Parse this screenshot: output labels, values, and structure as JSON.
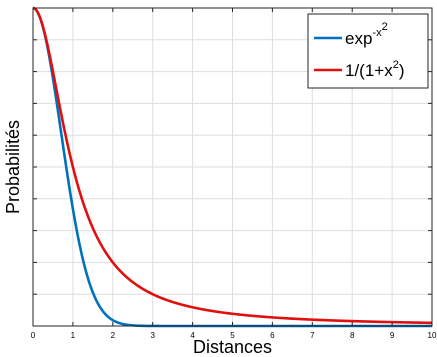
{
  "chart_data": {
    "type": "line",
    "xlabel": "Distances",
    "ylabel": "Probabilités",
    "xlim": [
      0,
      10
    ],
    "ylim": [
      0,
      1
    ],
    "x_ticks": [
      0,
      1,
      2,
      3,
      4,
      5,
      6,
      7,
      8,
      9,
      10
    ],
    "x_tick_labels": [
      "0",
      "1",
      "2",
      "3",
      "4",
      "5",
      "6",
      "7",
      "8",
      "9",
      "10"
    ],
    "y_tick_labels": [],
    "grid": true,
    "legend_position": "top-right",
    "series": [
      {
        "name": "exp-x2",
        "legend": {
          "base": "exp",
          "exp_prefix": "-x",
          "exp_sup": "2",
          "suffix": ""
        },
        "formula": "exp(-x^2)",
        "color": "#0072BD",
        "x": [
          0,
          0.25,
          0.5,
          0.75,
          1,
          1.25,
          1.5,
          1.75,
          2,
          2.5,
          3,
          3.5,
          4,
          5,
          6,
          7,
          8,
          9,
          10
        ],
        "y": [
          1,
          0.939,
          0.779,
          0.57,
          0.368,
          0.21,
          0.105,
          0.047,
          0.018,
          0.002,
          0.0001,
          0,
          0,
          0,
          0,
          0,
          0,
          0,
          0
        ]
      },
      {
        "name": "1/(1+x2)",
        "legend": {
          "base": "1/(1+x",
          "exp_prefix": "",
          "exp_sup": "2",
          "suffix": ")"
        },
        "formula": "1/(1+x^2)",
        "color": "#E01010",
        "x": [
          0,
          0.25,
          0.5,
          0.75,
          1,
          1.25,
          1.5,
          1.75,
          2,
          2.5,
          3,
          3.5,
          4,
          5,
          6,
          7,
          8,
          9,
          10
        ],
        "y": [
          1,
          0.941,
          0.8,
          0.64,
          0.5,
          0.39,
          0.308,
          0.246,
          0.2,
          0.138,
          0.1,
          0.075,
          0.059,
          0.038,
          0.027,
          0.02,
          0.015,
          0.012,
          0.0099
        ]
      }
    ]
  }
}
